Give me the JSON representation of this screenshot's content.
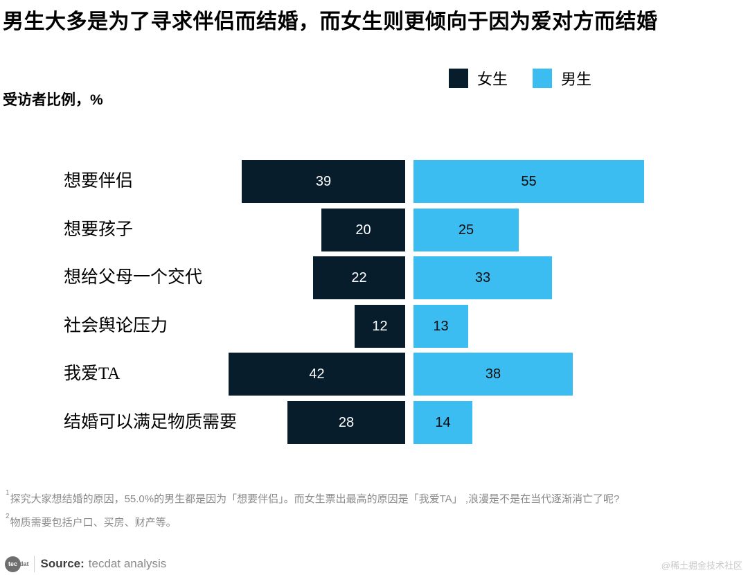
{
  "title": "男生大多是为了寻求伴侣而结婚，而女生则更倾向于因为爱对方而结婚",
  "axis_label": "受访者比例，%",
  "legend": [
    {
      "label": "女生",
      "color": "#081d2c"
    },
    {
      "label": "男生",
      "color": "#3bbdf1"
    }
  ],
  "chart_data": {
    "type": "bar",
    "orientation": "horizontal-diverging",
    "title": "男生大多是为了寻求伴侣而结婚，而女生则更倾向于因为爱对方而结婚",
    "ylabel": "受访者比例，%",
    "categories": [
      "想要伴侣",
      "想要孩子",
      "想给父母一个交代",
      "社会舆论压力",
      "我爱TA",
      "结婚可以满足物质需要"
    ],
    "series": [
      {
        "name": "女生",
        "color": "#081d2c",
        "values": [
          39,
          20,
          22,
          12,
          42,
          28
        ]
      },
      {
        "name": "男生",
        "color": "#3bbdf1",
        "values": [
          55,
          25,
          33,
          13,
          38,
          14
        ]
      }
    ],
    "unit": "%",
    "xlim": [
      0,
      55
    ],
    "grid": false,
    "value_labels": true,
    "legend_position": "top"
  },
  "footnotes": [
    {
      "marker": "1",
      "text": "探究大家想结婚的原因，55.0%的男生都是因为「想要伴侣」。而女生票出最高的原因是「我爱TA」 ,浪漫是不是在当代逐渐消亡了呢?"
    },
    {
      "marker": "2",
      "text": "物质需要包括户口、买房、财产等。"
    }
  ],
  "source": {
    "logo_circle": "tec",
    "logo_suffix": "dat",
    "label": "Source:",
    "value": "tecdat analysis"
  },
  "watermark": "@稀土掘金技术社区"
}
